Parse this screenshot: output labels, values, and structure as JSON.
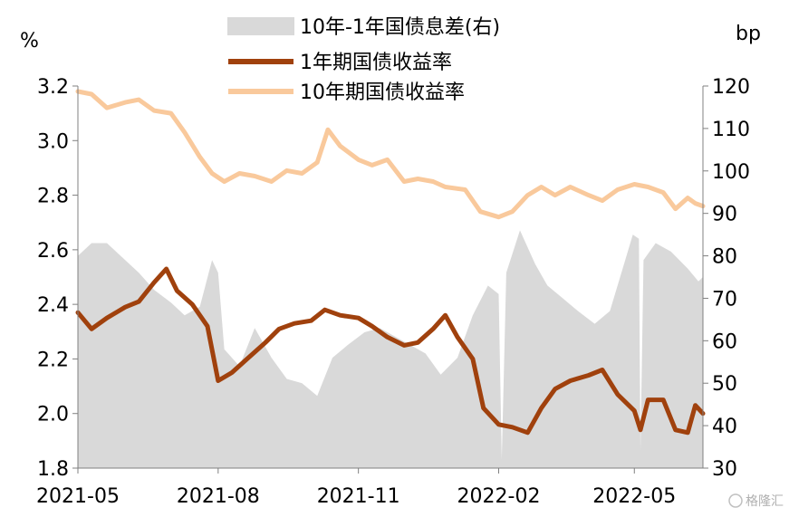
{
  "chart_data": {
    "type": "line",
    "left_unit": "%",
    "right_unit": "bp",
    "left_ylim": [
      1.8,
      3.2
    ],
    "left_yticks": [
      "1.8",
      "2.0",
      "2.2",
      "2.4",
      "2.6",
      "2.8",
      "3.0",
      "3.2"
    ],
    "right_ylim": [
      30,
      120
    ],
    "right_yticks": [
      "30",
      "40",
      "50",
      "60",
      "70",
      "80",
      "90",
      "100",
      "110",
      "120"
    ],
    "x_range": [
      "2021-05-01",
      "2022-06-15"
    ],
    "x_ticks": [
      "2021-05",
      "2021-08",
      "2021-11",
      "2022-02",
      "2022-05"
    ],
    "grid": false,
    "legend_position": "top-center",
    "series": [
      {
        "name": "10年-1年国债息差(右)",
        "kind": "area",
        "axis": "right",
        "color": "#d9d9d9",
        "points": [
          [
            "2021-05-01",
            80
          ],
          [
            "2021-05-10",
            83
          ],
          [
            "2021-05-20",
            83
          ],
          [
            "2021-06-01",
            79
          ],
          [
            "2021-06-10",
            76
          ],
          [
            "2021-06-20",
            72
          ],
          [
            "2021-07-01",
            69
          ],
          [
            "2021-07-10",
            66
          ],
          [
            "2021-07-20",
            68
          ],
          [
            "2021-07-28",
            79
          ],
          [
            "2021-08-01",
            76
          ],
          [
            "2021-08-05",
            58
          ],
          [
            "2021-08-15",
            54
          ],
          [
            "2021-08-25",
            63
          ],
          [
            "2021-09-05",
            56
          ],
          [
            "2021-09-15",
            51
          ],
          [
            "2021-09-25",
            50
          ],
          [
            "2021-10-05",
            47
          ],
          [
            "2021-10-15",
            56
          ],
          [
            "2021-10-25",
            59
          ],
          [
            "2021-11-05",
            62
          ],
          [
            "2021-11-15",
            63
          ],
          [
            "2021-11-25",
            61
          ],
          [
            "2021-12-05",
            59
          ],
          [
            "2021-12-15",
            57
          ],
          [
            "2021-12-25",
            52
          ],
          [
            "2022-01-05",
            56
          ],
          [
            "2022-01-15",
            66
          ],
          [
            "2022-01-25",
            73
          ],
          [
            "2022-02-01",
            71
          ],
          [
            "2022-02-03",
            32
          ],
          [
            "2022-02-06",
            76
          ],
          [
            "2022-02-15",
            86
          ],
          [
            "2022-02-25",
            78
          ],
          [
            "2022-03-05",
            73
          ],
          [
            "2022-03-15",
            70
          ],
          [
            "2022-03-25",
            67
          ],
          [
            "2022-04-05",
            64
          ],
          [
            "2022-04-15",
            67
          ],
          [
            "2022-04-25",
            79
          ],
          [
            "2022-04-30",
            85
          ],
          [
            "2022-05-04",
            84
          ],
          [
            "2022-05-05",
            34
          ],
          [
            "2022-05-07",
            79
          ],
          [
            "2022-05-15",
            83
          ],
          [
            "2022-05-25",
            81
          ],
          [
            "2022-06-05",
            77
          ],
          [
            "2022-06-12",
            74
          ],
          [
            "2022-06-15",
            75
          ]
        ]
      },
      {
        "name": "1年期国债收益率",
        "kind": "line",
        "axis": "left",
        "color": "#a0410d",
        "points": [
          [
            "2021-05-01",
            2.37
          ],
          [
            "2021-05-10",
            2.31
          ],
          [
            "2021-05-20",
            2.35
          ],
          [
            "2021-06-01",
            2.39
          ],
          [
            "2021-06-10",
            2.41
          ],
          [
            "2021-06-20",
            2.48
          ],
          [
            "2021-06-28",
            2.53
          ],
          [
            "2021-07-05",
            2.45
          ],
          [
            "2021-07-15",
            2.4
          ],
          [
            "2021-07-25",
            2.32
          ],
          [
            "2021-08-01",
            2.12
          ],
          [
            "2021-08-10",
            2.15
          ],
          [
            "2021-08-20",
            2.2
          ],
          [
            "2021-09-01",
            2.26
          ],
          [
            "2021-09-10",
            2.31
          ],
          [
            "2021-09-20",
            2.33
          ],
          [
            "2021-10-01",
            2.34
          ],
          [
            "2021-10-10",
            2.38
          ],
          [
            "2021-10-20",
            2.36
          ],
          [
            "2021-11-01",
            2.35
          ],
          [
            "2021-11-10",
            2.32
          ],
          [
            "2021-11-20",
            2.28
          ],
          [
            "2021-12-01",
            2.25
          ],
          [
            "2021-12-10",
            2.26
          ],
          [
            "2021-12-20",
            2.31
          ],
          [
            "2021-12-28",
            2.36
          ],
          [
            "2022-01-05",
            2.28
          ],
          [
            "2022-01-15",
            2.2
          ],
          [
            "2022-01-22",
            2.02
          ],
          [
            "2022-02-01",
            1.96
          ],
          [
            "2022-02-10",
            1.95
          ],
          [
            "2022-02-20",
            1.93
          ],
          [
            "2022-03-01",
            2.02
          ],
          [
            "2022-03-10",
            2.09
          ],
          [
            "2022-03-20",
            2.12
          ],
          [
            "2022-04-01",
            2.14
          ],
          [
            "2022-04-10",
            2.16
          ],
          [
            "2022-04-20",
            2.07
          ],
          [
            "2022-05-01",
            2.01
          ],
          [
            "2022-05-05",
            1.94
          ],
          [
            "2022-05-10",
            2.05
          ],
          [
            "2022-05-20",
            2.05
          ],
          [
            "2022-05-28",
            1.94
          ],
          [
            "2022-06-05",
            1.93
          ],
          [
            "2022-06-10",
            2.03
          ],
          [
            "2022-06-15",
            2.0
          ]
        ]
      },
      {
        "name": "10年期国债收益率",
        "kind": "line",
        "axis": "left",
        "color": "#f9c99c",
        "points": [
          [
            "2021-05-01",
            3.18
          ],
          [
            "2021-05-10",
            3.17
          ],
          [
            "2021-05-20",
            3.12
          ],
          [
            "2021-06-01",
            3.14
          ],
          [
            "2021-06-10",
            3.15
          ],
          [
            "2021-06-20",
            3.11
          ],
          [
            "2021-07-01",
            3.1
          ],
          [
            "2021-07-10",
            3.03
          ],
          [
            "2021-07-20",
            2.94
          ],
          [
            "2021-07-28",
            2.88
          ],
          [
            "2021-08-05",
            2.85
          ],
          [
            "2021-08-15",
            2.88
          ],
          [
            "2021-08-25",
            2.87
          ],
          [
            "2021-09-05",
            2.85
          ],
          [
            "2021-09-15",
            2.89
          ],
          [
            "2021-09-25",
            2.88
          ],
          [
            "2021-10-05",
            2.92
          ],
          [
            "2021-10-12",
            3.04
          ],
          [
            "2021-10-20",
            2.98
          ],
          [
            "2021-11-01",
            2.93
          ],
          [
            "2021-11-10",
            2.91
          ],
          [
            "2021-11-20",
            2.93
          ],
          [
            "2021-12-01",
            2.85
          ],
          [
            "2021-12-10",
            2.86
          ],
          [
            "2021-12-20",
            2.85
          ],
          [
            "2021-12-28",
            2.83
          ],
          [
            "2022-01-10",
            2.82
          ],
          [
            "2022-01-20",
            2.74
          ],
          [
            "2022-02-01",
            2.72
          ],
          [
            "2022-02-10",
            2.74
          ],
          [
            "2022-02-20",
            2.8
          ],
          [
            "2022-03-01",
            2.83
          ],
          [
            "2022-03-10",
            2.8
          ],
          [
            "2022-03-20",
            2.83
          ],
          [
            "2022-04-01",
            2.8
          ],
          [
            "2022-04-10",
            2.78
          ],
          [
            "2022-04-20",
            2.82
          ],
          [
            "2022-05-01",
            2.84
          ],
          [
            "2022-05-10",
            2.83
          ],
          [
            "2022-05-20",
            2.81
          ],
          [
            "2022-05-28",
            2.75
          ],
          [
            "2022-06-05",
            2.79
          ],
          [
            "2022-06-10",
            2.77
          ],
          [
            "2022-06-15",
            2.76
          ]
        ]
      }
    ]
  },
  "watermark": "格隆汇"
}
